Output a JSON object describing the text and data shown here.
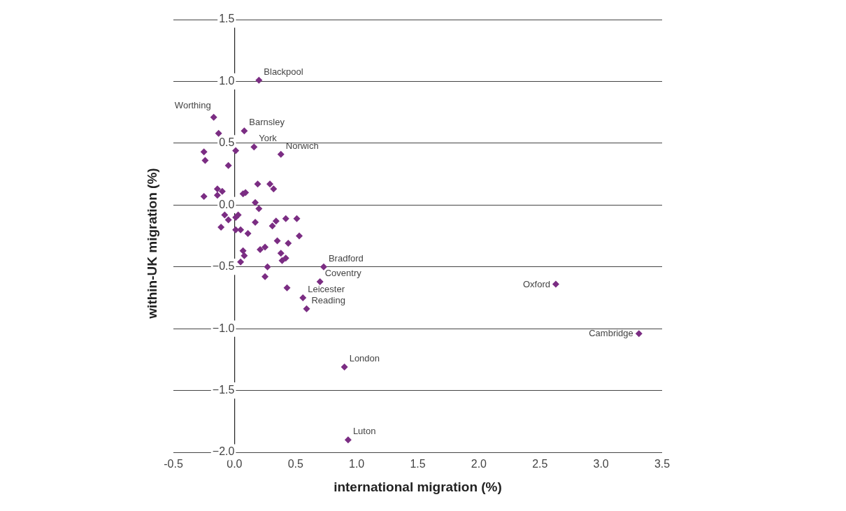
{
  "chart_data": {
    "type": "scatter",
    "xlabel": "international migration (%)",
    "ylabel": "within-UK migration (%)",
    "color": "#7b2d83",
    "marker": "diamond",
    "grid": "y",
    "xlim": [
      -0.5,
      3.5
    ],
    "ylim": [
      -2.0,
      1.5
    ],
    "xticks": [
      {
        "value": -0.5,
        "label": "-0.5"
      },
      {
        "value": 0,
        "label": "0.0"
      },
      {
        "value": 0.5,
        "label": "0.5"
      },
      {
        "value": 1,
        "label": "1.0"
      },
      {
        "value": 1.5,
        "label": "1.5"
      },
      {
        "value": 2,
        "label": "2.0"
      },
      {
        "value": 2.5,
        "label": "2.5"
      },
      {
        "value": 3,
        "label": "3.0"
      },
      {
        "value": 3.5,
        "label": "3.5"
      }
    ],
    "yticks": [
      {
        "value": -2,
        "label": "−2.0"
      },
      {
        "value": -1.5,
        "label": "−1.5"
      },
      {
        "value": -1,
        "label": "−1.0"
      },
      {
        "value": -0.5,
        "label": "−0.5"
      },
      {
        "value": 0,
        "label": "0.0"
      },
      {
        "value": 0.5,
        "label": "0.5"
      },
      {
        "value": 1,
        "label": "1.0"
      },
      {
        "value": 1.5,
        "label": "1.5"
      }
    ],
    "x": [
      0.2,
      -0.17,
      -0.13,
      0.08,
      0.16,
      0.01,
      0.38,
      -0.25,
      -0.24,
      -0.05,
      0.19,
      0.29,
      0.32,
      -0.14,
      -0.1,
      -0.14,
      -0.25,
      0.07,
      0.09,
      0.17,
      0.2,
      -0.08,
      -0.05,
      -0.11,
      0.01,
      0.03,
      0.01,
      0.05,
      0.11,
      0.17,
      0.31,
      0.34,
      0.42,
      0.51,
      0.53,
      0.35,
      0.44,
      0.21,
      0.25,
      0.07,
      0.08,
      0.05,
      0.38,
      0.39,
      0.42,
      0.27,
      0.25,
      0.43,
      0.73,
      0.7,
      0.56,
      0.59,
      0.9,
      0.93,
      2.63,
      3.31
    ],
    "values": [
      1.01,
      0.71,
      0.58,
      0.6,
      0.47,
      0.44,
      0.41,
      0.43,
      0.36,
      0.32,
      0.17,
      0.17,
      0.13,
      0.13,
      0.11,
      0.08,
      0.07,
      0.09,
      0.1,
      0.02,
      -0.03,
      -0.08,
      -0.12,
      -0.18,
      -0.1,
      -0.08,
      -0.2,
      -0.2,
      -0.23,
      -0.14,
      -0.17,
      -0.13,
      -0.11,
      -0.11,
      -0.25,
      -0.29,
      -0.31,
      -0.36,
      -0.34,
      -0.37,
      -0.41,
      -0.46,
      -0.39,
      -0.45,
      -0.43,
      -0.5,
      -0.58,
      -0.67,
      -0.5,
      -0.62,
      -0.75,
      -0.84,
      -1.31,
      -1.9,
      -0.64,
      -1.04
    ],
    "annotations": [
      {
        "text": "Blackpool",
        "x": 0.2,
        "y": 1.01
      },
      {
        "text": "Worthing",
        "x": -0.17,
        "y": 0.71
      },
      {
        "text": "Barnsley",
        "x": 0.08,
        "y": 0.6
      },
      {
        "text": "York",
        "x": 0.16,
        "y": 0.47
      },
      {
        "text": "Norwich",
        "x": 0.38,
        "y": 0.41
      },
      {
        "text": "Bradford",
        "x": 0.73,
        "y": -0.5
      },
      {
        "text": "Coventry",
        "x": 0.7,
        "y": -0.62
      },
      {
        "text": "Leicester",
        "x": 0.56,
        "y": -0.75
      },
      {
        "text": "Reading",
        "x": 0.59,
        "y": -0.84
      },
      {
        "text": "London",
        "x": 0.9,
        "y": -1.31
      },
      {
        "text": "Luton",
        "x": 0.93,
        "y": -1.9
      },
      {
        "text": "Oxford",
        "x": 2.63,
        "y": -0.64
      },
      {
        "text": "Cambridge",
        "x": 3.31,
        "y": -1.04
      }
    ]
  }
}
